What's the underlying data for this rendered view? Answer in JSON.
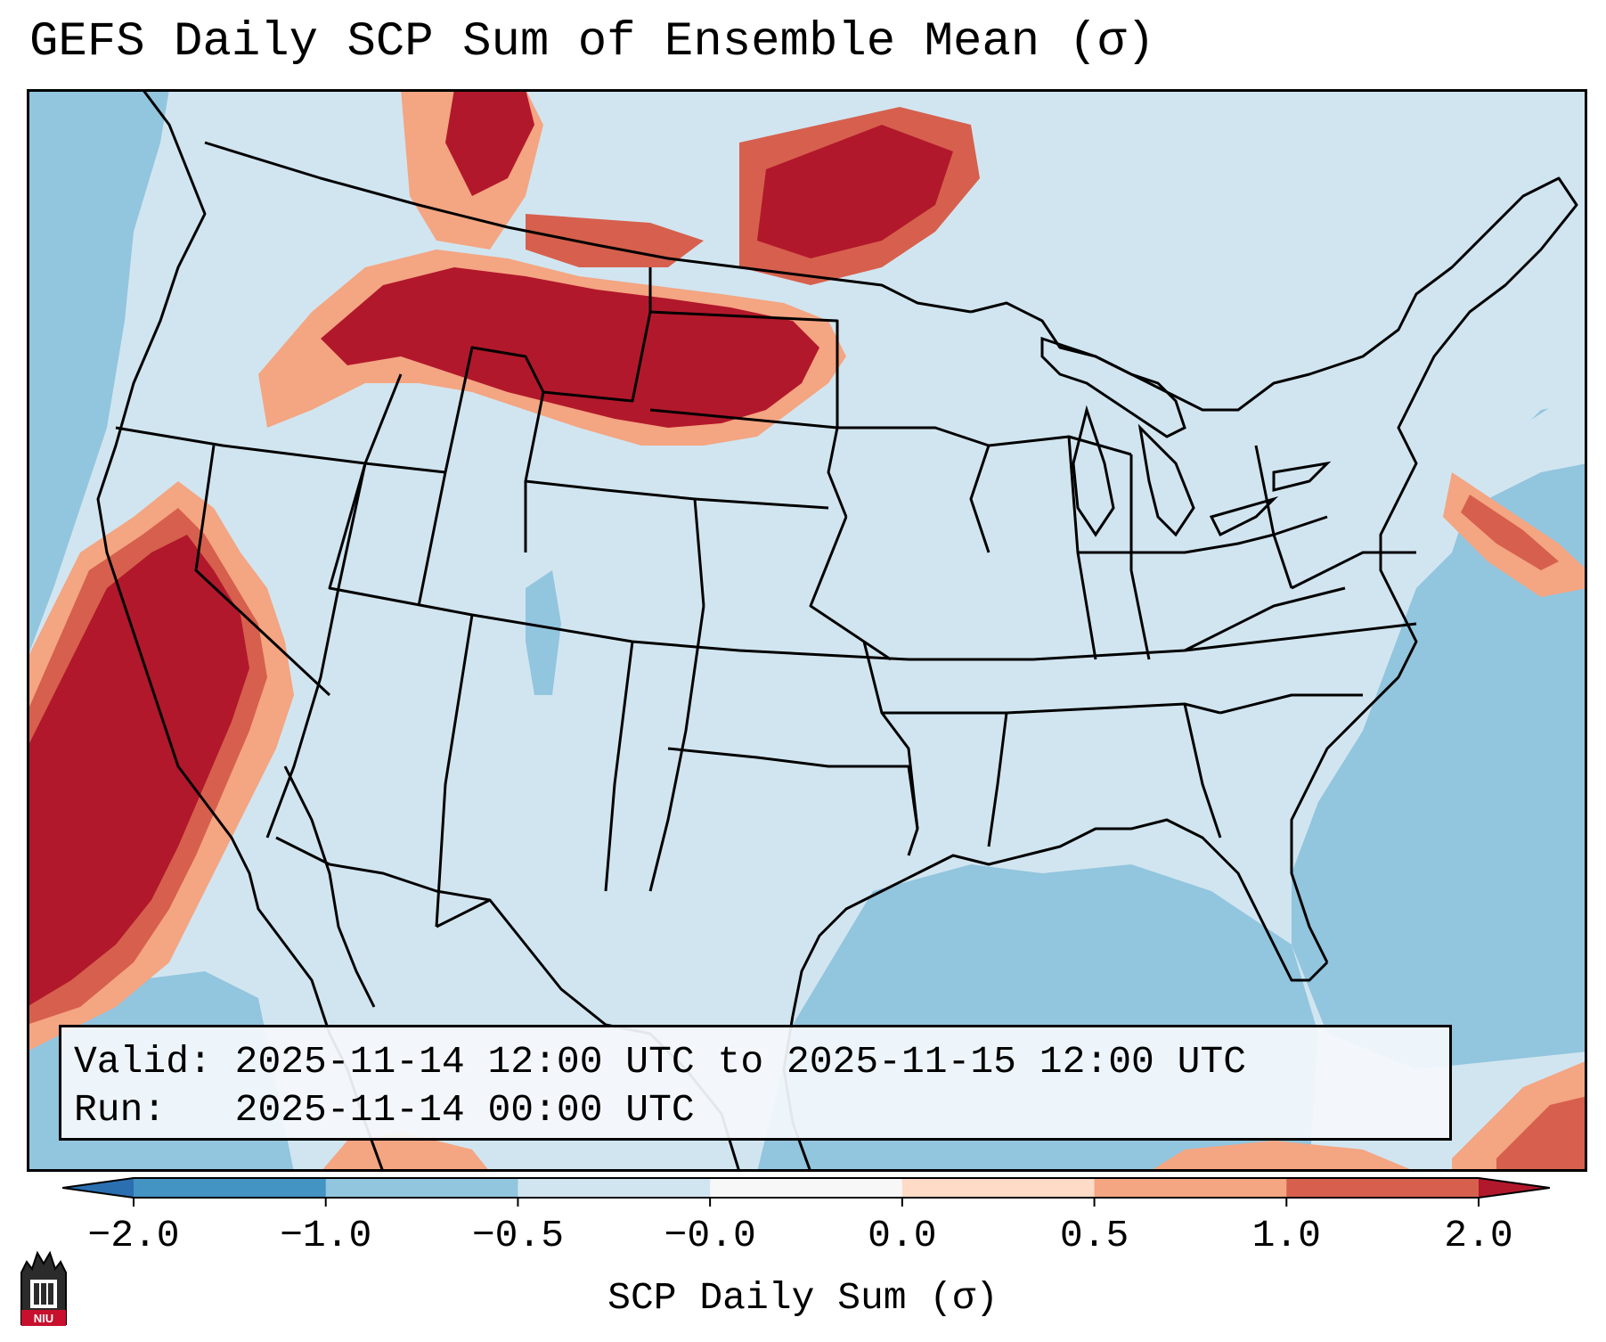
{
  "title": "GEFS Daily SCP Sum of Ensemble Mean (σ)",
  "info": {
    "valid_label": "Valid:",
    "valid_value": "2025-11-14 12:00 UTC to 2025-11-15 12:00 UTC",
    "run_label": "Run:  ",
    "run_value": "2025-11-14 00:00 UTC"
  },
  "colorbar": {
    "label": "SCP Daily Sum (σ)",
    "ticks": [
      "−2.0",
      "−1.0",
      "−0.5",
      "−0.0",
      "0.0",
      "0.5",
      "1.0",
      "2.0"
    ],
    "colors": [
      "#2b6fb0",
      "#4393c3",
      "#92c5de",
      "#d1e5f0",
      "#f7f7f7",
      "#fddbc7",
      "#f4a582",
      "#d6604d",
      "#b2182b"
    ]
  },
  "logo": {
    "text": "NIU"
  },
  "colors": {
    "land_base": "#d1e5f0",
    "ocean_base": "#92c5de",
    "strong_red": "#b2182b"
  }
}
